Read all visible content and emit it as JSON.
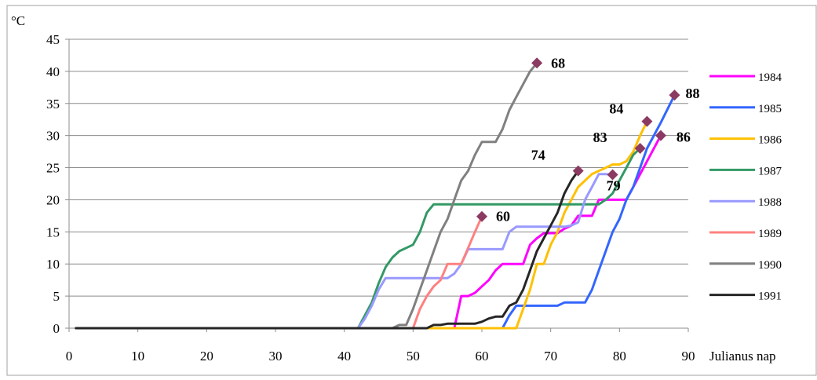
{
  "chart_data": {
    "type": "line",
    "ylabel": "°C",
    "xlabel": "Julianus nap",
    "xlim": [
      0,
      90
    ],
    "ylim": [
      0,
      45
    ],
    "x_ticks": [
      "0",
      "10",
      "20",
      "30",
      "40",
      "50",
      "60",
      "70",
      "80",
      "90"
    ],
    "y_ticks": [
      "0",
      "5",
      "10",
      "15",
      "20",
      "25",
      "30",
      "35",
      "40",
      "45"
    ],
    "grid": "horizontal",
    "legend_position": "right",
    "series": [
      {
        "name": "1984",
        "color": "#ff00ff",
        "points": [
          [
            1,
            0
          ],
          [
            56,
            0
          ],
          [
            57,
            5
          ],
          [
            58,
            5
          ],
          [
            59,
            5.5
          ],
          [
            60,
            6.5
          ],
          [
            61,
            7.5
          ],
          [
            62,
            9
          ],
          [
            63,
            10
          ],
          [
            65,
            10
          ],
          [
            66,
            10
          ],
          [
            67,
            13
          ],
          [
            68,
            14
          ],
          [
            69,
            14.8
          ],
          [
            71,
            14.8
          ],
          [
            72,
            15.5
          ],
          [
            73,
            16
          ],
          [
            74,
            17.5
          ],
          [
            76,
            17.5
          ],
          [
            77,
            20
          ],
          [
            81,
            20
          ],
          [
            82,
            22
          ],
          [
            84,
            26
          ],
          [
            86,
            30
          ]
        ],
        "end": {
          "x": 86,
          "y": 30,
          "label": "86"
        }
      },
      {
        "name": "1985",
        "color": "#3366ff",
        "points": [
          [
            1,
            0
          ],
          [
            63,
            0
          ],
          [
            64,
            2
          ],
          [
            65,
            3.5
          ],
          [
            71,
            3.5
          ],
          [
            72,
            4
          ],
          [
            75,
            4
          ],
          [
            76,
            6
          ],
          [
            77,
            9
          ],
          [
            78,
            12
          ],
          [
            79,
            15
          ],
          [
            80,
            17
          ],
          [
            81,
            20
          ],
          [
            82,
            22
          ],
          [
            83,
            25
          ],
          [
            84,
            28
          ],
          [
            86,
            32
          ],
          [
            88,
            36.3
          ]
        ],
        "end": {
          "x": 88,
          "y": 36.3,
          "label": "88"
        }
      },
      {
        "name": "1986",
        "color": "#ffc000",
        "points": [
          [
            1,
            0
          ],
          [
            53,
            0
          ],
          [
            65,
            0
          ],
          [
            66,
            3
          ],
          [
            67,
            6
          ],
          [
            68,
            10
          ],
          [
            69,
            10
          ],
          [
            70,
            13
          ],
          [
            71,
            15
          ],
          [
            72,
            18
          ],
          [
            73,
            20
          ],
          [
            74,
            22
          ],
          [
            75,
            23
          ],
          [
            76,
            24
          ],
          [
            78,
            25
          ],
          [
            79,
            25.5
          ],
          [
            80,
            25.5
          ],
          [
            81,
            26
          ],
          [
            82,
            27.5
          ],
          [
            83,
            30
          ],
          [
            84,
            32.2
          ]
        ],
        "end": {
          "x": 84,
          "y": 32.2,
          "label": "84"
        }
      },
      {
        "name": "1987",
        "color": "#339966",
        "points": [
          [
            1,
            0
          ],
          [
            42,
            0
          ],
          [
            43,
            2
          ],
          [
            44,
            4
          ],
          [
            45,
            7
          ],
          [
            46,
            9.5
          ],
          [
            47,
            11
          ],
          [
            48,
            12
          ],
          [
            49,
            12.5
          ],
          [
            50,
            13
          ],
          [
            51,
            15
          ],
          [
            52,
            18
          ],
          [
            53,
            19.3
          ],
          [
            77,
            19.3
          ],
          [
            78,
            20
          ],
          [
            79,
            21
          ],
          [
            80,
            23
          ],
          [
            81,
            25
          ],
          [
            82,
            27
          ],
          [
            83,
            28
          ]
        ],
        "end": {
          "x": 83,
          "y": 28,
          "label": "83"
        }
      },
      {
        "name": "1988",
        "color": "#9999ff",
        "points": [
          [
            1,
            0
          ],
          [
            42,
            0
          ],
          [
            43,
            1.5
          ],
          [
            44,
            3.5
          ],
          [
            45,
            6
          ],
          [
            46,
            7.8
          ],
          [
            55,
            7.8
          ],
          [
            56,
            8.5
          ],
          [
            57,
            10
          ],
          [
            58,
            12.3
          ],
          [
            63,
            12.3
          ],
          [
            64,
            15
          ],
          [
            65,
            15.8
          ],
          [
            72,
            15.8
          ],
          [
            73,
            16
          ],
          [
            74,
            16.5
          ],
          [
            75,
            20
          ],
          [
            76,
            22
          ],
          [
            77,
            24
          ],
          [
            78,
            24
          ],
          [
            79,
            23.9
          ]
        ],
        "end": {
          "x": 79,
          "y": 23.9,
          "label": "79"
        }
      },
      {
        "name": "1989",
        "color": "#ff8080",
        "points": [
          [
            1,
            0
          ],
          [
            50,
            0
          ],
          [
            51,
            3
          ],
          [
            52,
            5
          ],
          [
            53,
            6.5
          ],
          [
            54,
            7.5
          ],
          [
            55,
            10
          ],
          [
            57,
            10
          ],
          [
            58,
            12.5
          ],
          [
            59,
            15
          ],
          [
            60,
            17.4
          ]
        ],
        "end": {
          "x": 60,
          "y": 17.4,
          "label": "60"
        }
      },
      {
        "name": "1990",
        "color": "#808080",
        "points": [
          [
            1,
            0
          ],
          [
            47,
            0
          ],
          [
            48,
            0.5
          ],
          [
            49,
            0.5
          ],
          [
            50,
            3
          ],
          [
            51,
            6
          ],
          [
            52,
            9
          ],
          [
            53,
            12
          ],
          [
            54,
            15
          ],
          [
            55,
            17
          ],
          [
            56,
            20
          ],
          [
            57,
            23
          ],
          [
            58,
            24.5
          ],
          [
            59,
            27
          ],
          [
            60,
            29
          ],
          [
            62,
            29
          ],
          [
            63,
            31
          ],
          [
            64,
            34
          ],
          [
            65,
            36
          ],
          [
            66,
            38
          ],
          [
            67,
            40
          ],
          [
            68,
            41.3
          ]
        ],
        "end": {
          "x": 68,
          "y": 41.3,
          "label": "68"
        }
      },
      {
        "name": "1991",
        "color": "#262626",
        "points": [
          [
            1,
            0
          ],
          [
            52,
            0
          ],
          [
            53,
            0.5
          ],
          [
            54,
            0.5
          ],
          [
            55,
            0.7
          ],
          [
            59,
            0.7
          ],
          [
            60,
            1
          ],
          [
            61,
            1.5
          ],
          [
            62,
            1.8
          ],
          [
            63,
            1.8
          ],
          [
            64,
            3.5
          ],
          [
            65,
            4
          ],
          [
            66,
            6
          ],
          [
            67,
            9
          ],
          [
            68,
            12
          ],
          [
            69,
            14
          ],
          [
            70,
            16
          ],
          [
            71,
            18
          ],
          [
            72,
            21
          ],
          [
            73,
            23
          ],
          [
            74,
            24.5
          ]
        ],
        "end": {
          "x": 74,
          "y": 24.5,
          "label": "74"
        }
      }
    ],
    "marker_color": "#8b3a62"
  }
}
